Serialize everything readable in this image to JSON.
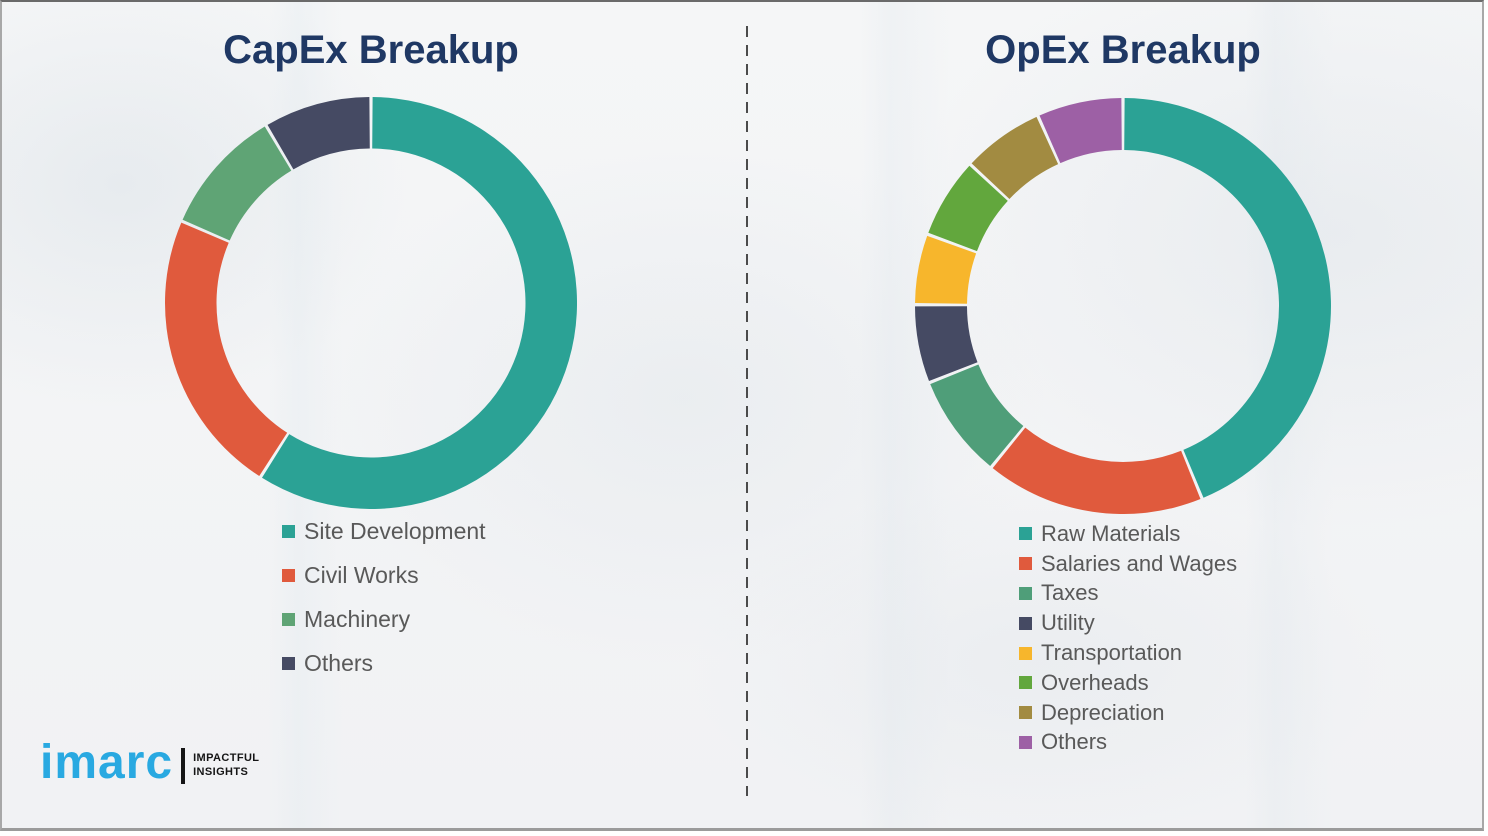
{
  "page": {
    "background_color": "#f2f3f5",
    "border_color": "#9b9b9b",
    "divider_color": "#4b4b4b",
    "title_color": "#1f3864",
    "legend_text_color": "#595959"
  },
  "chart_data": [
    {
      "type": "pie",
      "subtype": "donut",
      "title": "CapEx Breakup",
      "categories": [
        "Site Development",
        "Civil Works",
        "Machinery",
        "Others"
      ],
      "values": [
        59,
        22.5,
        10,
        8.5
      ],
      "values_note": "percent share estimated from arc angles; no data labels shown",
      "colors": [
        "#2ba295",
        "#e05a3d",
        "#5fa475",
        "#454a63"
      ],
      "start_angle_deg": 0,
      "direction": "clockwise",
      "donut_hole_ratio": 0.75,
      "slice_gap_color": "#ffffff",
      "legend_position": "below-left"
    },
    {
      "type": "pie",
      "subtype": "donut",
      "title": "OpEx Breakup",
      "categories": [
        "Raw Materials",
        "Salaries and Wages",
        "Taxes",
        "Utility",
        "Transportation",
        "Overheads",
        "Depreciation",
        "Others"
      ],
      "values": [
        43.8,
        17.1,
        8.1,
        6.1,
        5.5,
        6.3,
        6.4,
        6.7
      ],
      "values_note": "percent share estimated from arc angles; no data labels shown",
      "colors": [
        "#2ba295",
        "#e05a3d",
        "#4f9e79",
        "#454a63",
        "#f7b62c",
        "#62a73d",
        "#a28b41",
        "#9d60a5"
      ],
      "start_angle_deg": 0,
      "direction": "clockwise",
      "donut_hole_ratio": 0.75,
      "slice_gap_color": "#ffffff",
      "legend_position": "below-left"
    }
  ],
  "branding": {
    "logo_text": "imarc",
    "tagline": [
      "IMPACTFUL",
      "INSIGHTS"
    ],
    "logo_color": "#29a9e1",
    "tagline_color": "#151515"
  }
}
